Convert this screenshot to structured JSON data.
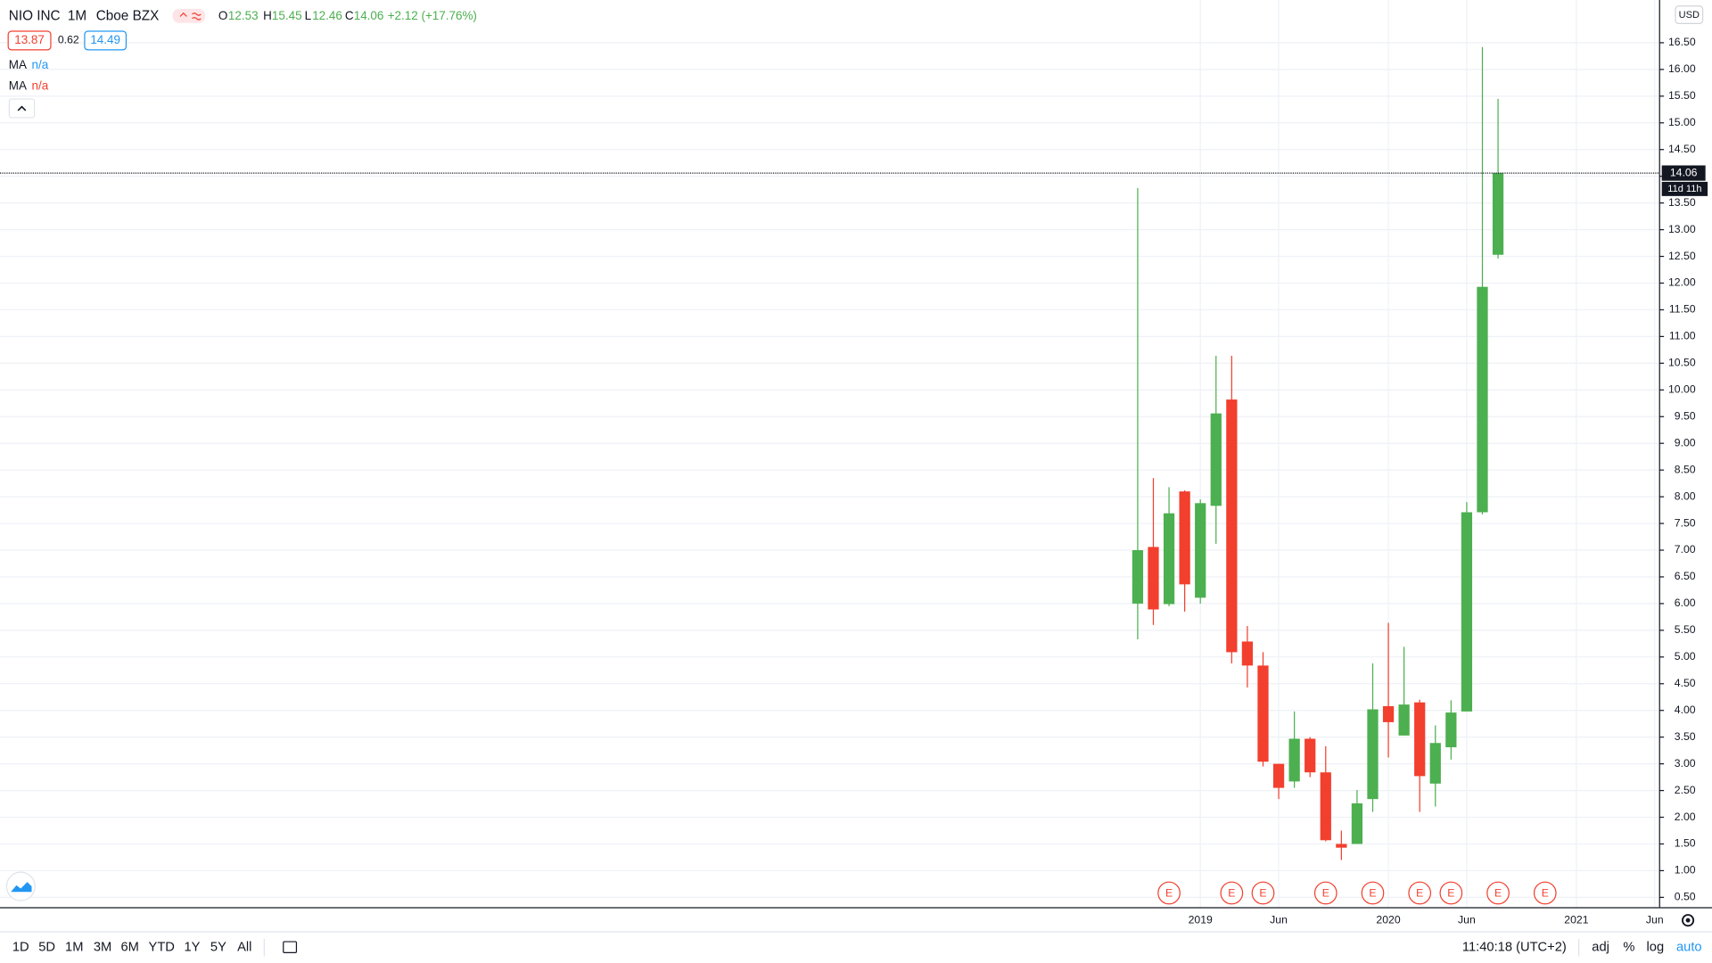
{
  "chart_data": {
    "type": "candlestick",
    "header": {
      "symbol": "NIO INC",
      "interval": "1M",
      "exchange": "Cboe BZX",
      "open_label": "O",
      "high_label": "H",
      "low_label": "L",
      "close_label": "C",
      "change_label": "+2.12 (+17.76%)"
    },
    "bid": 13.87,
    "spread": 0.62,
    "ask": 14.49,
    "indicators": [
      {
        "name": "MA",
        "value": "n/a"
      },
      {
        "name": "MA",
        "value": "n/a"
      }
    ],
    "currency": "USD",
    "countdown": "11d 11h",
    "categories": [
      null,
      null,
      null,
      null,
      "2019",
      null,
      null,
      null,
      null,
      "Jun",
      null,
      null,
      null,
      null,
      null,
      null,
      "2020",
      null,
      null,
      null,
      null,
      "Jun",
      null,
      null,
      null,
      null,
      null,
      null,
      "2021",
      null,
      null,
      null,
      null,
      "Jun"
    ],
    "open": [
      6.0,
      7.06,
      5.99,
      8.1,
      6.11,
      7.83,
      9.82,
      5.29,
      4.84,
      3.0,
      2.67,
      3.47,
      2.84,
      1.5,
      1.5,
      2.34,
      4.08,
      3.53,
      4.15,
      2.63,
      3.31,
      3.98,
      7.71,
      12.53,
      null,
      null,
      null,
      null,
      null,
      null,
      null,
      null,
      null,
      null
    ],
    "high": [
      13.78,
      8.35,
      8.18,
      8.12,
      7.95,
      10.64,
      10.64,
      5.58,
      5.09,
      3.0,
      3.98,
      3.5,
      3.33,
      1.75,
      2.51,
      4.88,
      5.64,
      5.19,
      4.2,
      3.72,
      4.19,
      7.9,
      16.42,
      15.45,
      null,
      null,
      null,
      null,
      null,
      null,
      null,
      null,
      null,
      null
    ],
    "low": [
      5.33,
      5.6,
      5.95,
      5.85,
      6.0,
      7.12,
      4.88,
      4.43,
      2.95,
      2.34,
      2.55,
      2.75,
      1.55,
      1.2,
      1.5,
      2.1,
      3.12,
      3.53,
      2.1,
      2.2,
      3.08,
      3.98,
      7.67,
      12.46,
      null,
      null,
      null,
      null,
      null,
      null,
      null,
      null,
      null,
      null
    ],
    "close": [
      7.0,
      5.89,
      7.69,
      6.36,
      7.88,
      9.56,
      5.09,
      4.84,
      3.04,
      2.55,
      3.47,
      2.84,
      1.57,
      1.43,
      2.26,
      4.02,
      3.78,
      4.11,
      2.77,
      3.39,
      3.96,
      7.71,
      11.93,
      14.06,
      null,
      null,
      null,
      null,
      null,
      null,
      null,
      null,
      null,
      null
    ],
    "earnings": [
      null,
      null,
      "E",
      null,
      null,
      null,
      "E",
      null,
      "E",
      null,
      null,
      null,
      "E",
      null,
      null,
      "E",
      null,
      null,
      "E",
      null,
      "E",
      null,
      null,
      "E",
      null,
      null,
      "E",
      null,
      null,
      null,
      null,
      null,
      null,
      null
    ],
    "up_color": "#4caf50",
    "down_color": "#f23f2e",
    "ylim": [
      0.316,
      17.3
    ],
    "yticks": [
      {
        "value": 0.5,
        "label": "0.50"
      },
      {
        "value": 1,
        "label": "1.00"
      },
      {
        "value": 1.5,
        "label": "1.50"
      },
      {
        "value": 2,
        "label": "2.00"
      },
      {
        "value": 2.5,
        "label": "2.50"
      },
      {
        "value": 3,
        "label": "3.00"
      },
      {
        "value": 3.5,
        "label": "3.50"
      },
      {
        "value": 4,
        "label": "4.00"
      },
      {
        "value": 4.5,
        "label": "4.50"
      },
      {
        "value": 5,
        "label": "5.00"
      },
      {
        "value": 5.5,
        "label": "5.50"
      },
      {
        "value": 6,
        "label": "6.00"
      },
      {
        "value": 6.5,
        "label": "6.50"
      },
      {
        "value": 7,
        "label": "7.00"
      },
      {
        "value": 7.5,
        "label": "7.50"
      },
      {
        "value": 8,
        "label": "8.00"
      },
      {
        "value": 8.5,
        "label": "8.50"
      },
      {
        "value": 9,
        "label": "9.00"
      },
      {
        "value": 9.5,
        "label": "9.50"
      },
      {
        "value": 10,
        "label": "10.00"
      },
      {
        "value": 10.5,
        "label": "10.50"
      },
      {
        "value": 11,
        "label": "11.00"
      },
      {
        "value": 11.5,
        "label": "11.50"
      },
      {
        "value": 12,
        "label": "12.00"
      },
      {
        "value": 12.5,
        "label": "12.50"
      },
      {
        "value": 13,
        "label": "13.00"
      },
      {
        "value": 13.5,
        "label": "13.50"
      },
      {
        "value": 14,
        "label": "14.00"
      },
      {
        "value": 14.5,
        "label": "14.50"
      },
      {
        "value": 15,
        "label": "15.00"
      },
      {
        "value": 15.5,
        "label": "15.50"
      },
      {
        "value": 16,
        "label": "16.00"
      },
      {
        "value": 16.5,
        "label": "16.50"
      }
    ],
    "grid": true
  },
  "toolbar": {
    "timeframes": [
      "1D",
      "5D",
      "1M",
      "3M",
      "6M",
      "YTD",
      "1Y",
      "5Y",
      "All"
    ],
    "clock": "11:40:18 (UTC+2)",
    "options": [
      "adj",
      "%",
      "log",
      "auto"
    ]
  }
}
